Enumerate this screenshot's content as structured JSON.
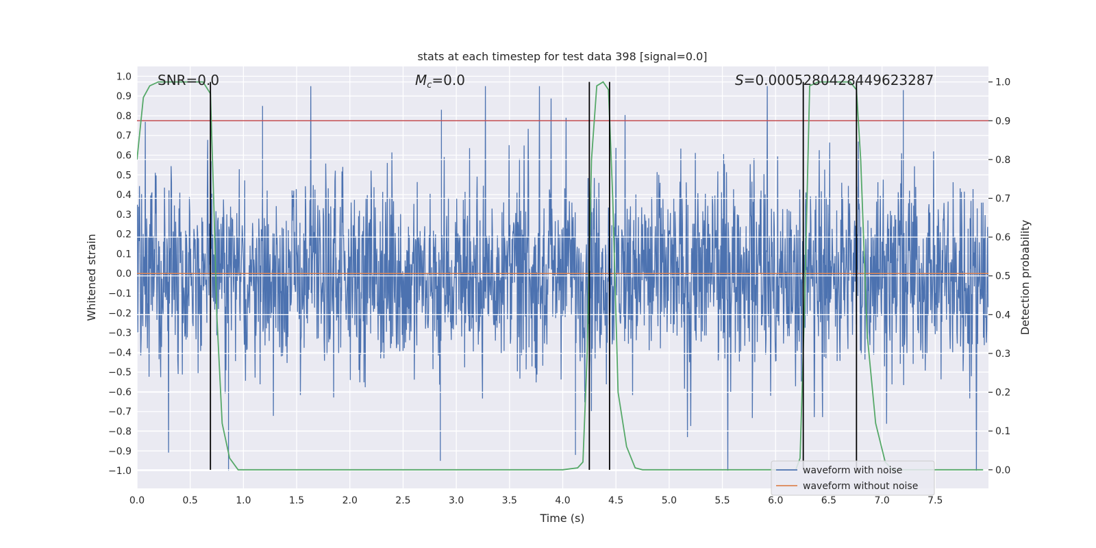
{
  "chart_data": {
    "type": "line",
    "title": "stats at each timestep for test data 398 [signal=0.0]",
    "xlabel": "Time (s)",
    "ylabel_left": "Whitened strain",
    "ylabel_right": "Detection probability",
    "xlim": [
      0.0,
      8.0
    ],
    "ylim_left": [
      -1.09,
      1.05
    ],
    "ylim_right": [
      -0.048,
      1.04
    ],
    "x_ticks": [
      "0.0",
      "0.5",
      "1.0",
      "1.5",
      "2.0",
      "2.5",
      "3.0",
      "3.5",
      "4.0",
      "4.5",
      "5.0",
      "5.5",
      "6.0",
      "6.5",
      "7.0",
      "7.5"
    ],
    "y_ticks_left": [
      "1.0",
      "0.9",
      "0.8",
      "0.7",
      "0.6",
      "0.5",
      "0.4",
      "0.3",
      "0.2",
      "0.1",
      "0.0",
      "−0.1",
      "−0.2",
      "−0.3",
      "−0.4",
      "−0.5",
      "−0.6",
      "−0.7",
      "−0.8",
      "−0.9",
      "−1.0"
    ],
    "y_ticks_right": [
      "1.0",
      "0.9",
      "0.8",
      "0.7",
      "0.6",
      "0.5",
      "0.4",
      "0.3",
      "0.2",
      "0.1",
      "0.0"
    ],
    "annotations": {
      "snr_text": "SNR=0.0",
      "mc_symbol": "M",
      "mc_sub": "c",
      "mc_value": "=0.0",
      "s_symbol": "S",
      "s_value": "=0.0005280428449623287"
    },
    "threshold": 0.9,
    "vertical_markers_s": [
      0.69,
      4.25,
      4.44,
      6.26,
      6.76
    ],
    "series": [
      {
        "name": "waveform with noise",
        "color": "#4c72b0",
        "amplitude_envelope": [
          0.45,
          0.62
        ],
        "notable_peaks": [
          [
            1.18,
            0.85
          ],
          [
            2.86,
            0.83
          ],
          [
            7.2,
            0.93
          ],
          [
            2.85,
            -0.95
          ],
          [
            4.12,
            -0.92
          ],
          [
            0.86,
            -1.0
          ]
        ]
      },
      {
        "name": "waveform without noise",
        "color": "#dd8452",
        "values_constant": 0.0
      },
      {
        "name": "detection probability",
        "color": "#55a868",
        "x": [
          0.0,
          0.06,
          0.12,
          0.2,
          0.3,
          0.4,
          0.5,
          0.62,
          0.69,
          0.72,
          0.75,
          0.8,
          0.87,
          0.95,
          1.0,
          2.0,
          3.0,
          4.0,
          4.14,
          4.19,
          4.23,
          4.27,
          4.32,
          4.38,
          4.43,
          4.47,
          4.52,
          4.6,
          4.68,
          4.75,
          5.0,
          6.0,
          6.19,
          6.23,
          6.27,
          6.32,
          6.4,
          6.55,
          6.7,
          6.76,
          6.8,
          6.86,
          6.94,
          7.03,
          7.1,
          7.5,
          7.95
        ],
        "y": [
          0.8,
          0.96,
          0.99,
          1.0,
          1.0,
          1.0,
          1.0,
          1.0,
          0.97,
          0.7,
          0.4,
          0.12,
          0.03,
          0.0,
          0.0,
          0.0,
          0.0,
          0.0,
          0.005,
          0.02,
          0.3,
          0.8,
          0.99,
          1.0,
          0.98,
          0.7,
          0.2,
          0.06,
          0.005,
          0.0,
          0.0,
          0.0,
          0.0,
          0.03,
          0.4,
          0.99,
          1.0,
          1.0,
          1.0,
          0.98,
          0.8,
          0.35,
          0.12,
          0.02,
          0.0,
          0.0,
          0.0
        ]
      },
      {
        "name": "threshold",
        "color": "#c44e52",
        "values_constant": 0.9
      }
    ],
    "legend": {
      "placement": "bottom-right",
      "entries": [
        {
          "label": "waveform with noise",
          "color": "#4c72b0"
        },
        {
          "label": "waveform without noise",
          "color": "#dd8452"
        }
      ]
    },
    "background": "#eaeaf2",
    "grid_color": "#ffffff",
    "marker_color": "#000000"
  }
}
